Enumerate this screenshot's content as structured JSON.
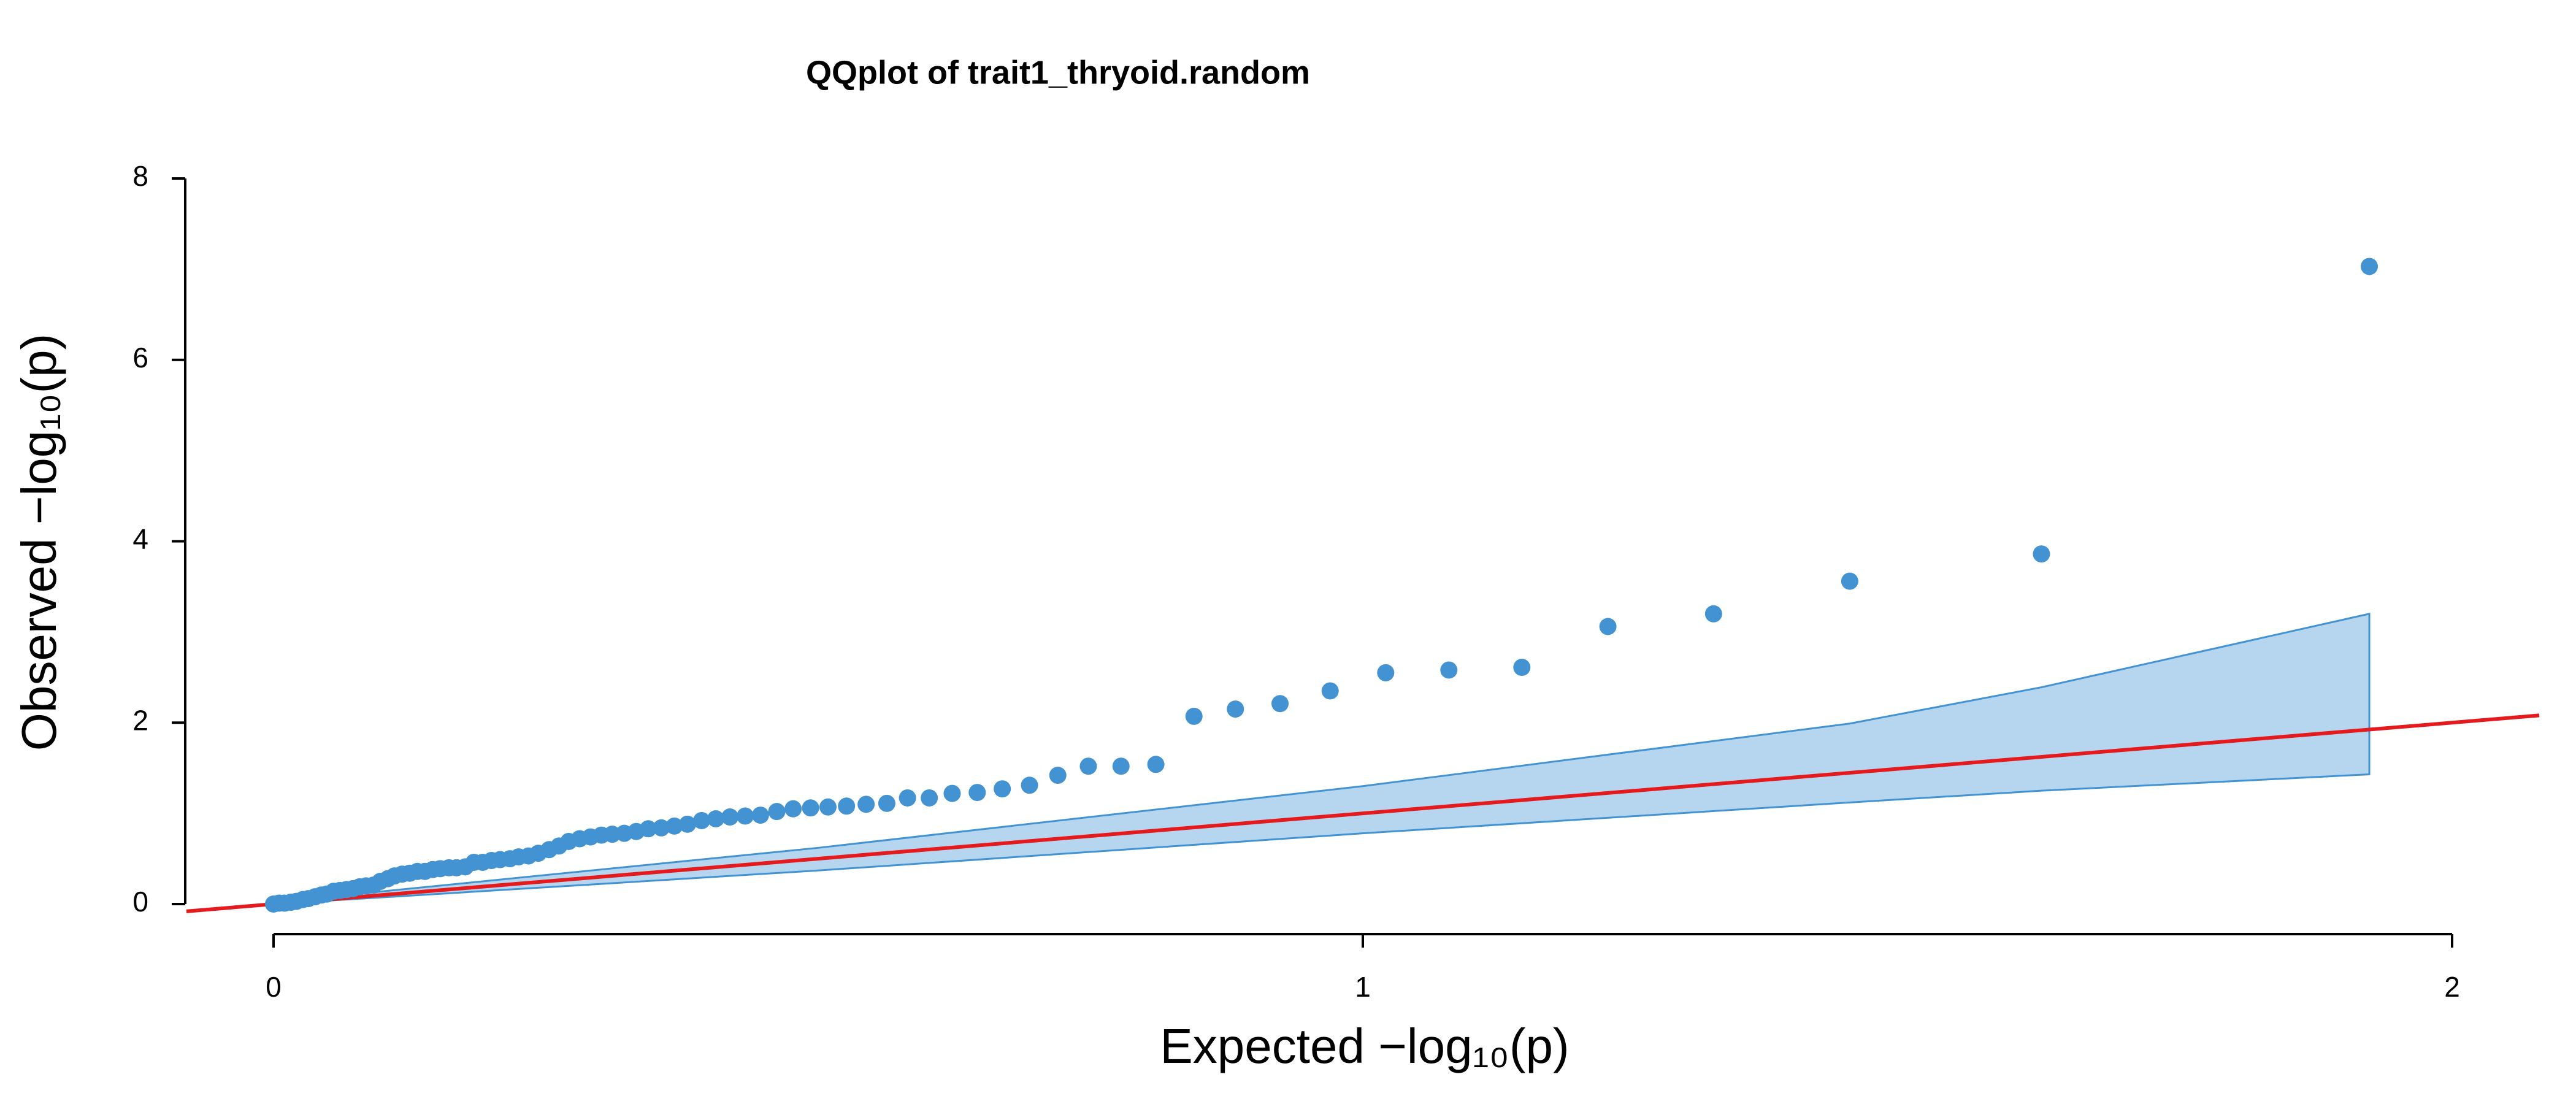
{
  "chart_data": {
    "type": "qq",
    "title": "QQplot of trait1_thryoid.random",
    "x_label": "Expected −log₁₀(p)",
    "y_label": "Observed −log₁₀(p)",
    "xlim": [
      0,
      2
    ],
    "ylim": [
      0,
      8
    ],
    "xticks": [
      0,
      1,
      2
    ],
    "yticks": [
      0,
      2,
      4,
      6,
      8
    ],
    "point_color": "#4393d3",
    "band_color": "#b6d6f0",
    "band_edge": "#4393d3",
    "reference_line": {
      "slope": 1,
      "intercept": 0,
      "color": "#e41a1c"
    },
    "x": [
      1.924,
      1.623,
      1.447,
      1.322,
      1.225,
      1.146,
      1.079,
      1.021,
      0.97,
      0.924,
      0.883,
      0.845,
      0.81,
      0.778,
      0.748,
      0.72,
      0.694,
      0.669,
      0.646,
      0.623,
      0.602,
      0.582,
      0.563,
      0.544,
      0.526,
      0.509,
      0.493,
      0.477,
      0.462,
      0.447,
      0.433,
      0.419,
      0.406,
      0.393,
      0.38,
      0.368,
      0.356,
      0.344,
      0.333,
      0.322,
      0.311,
      0.301,
      0.291,
      0.281,
      0.271,
      0.262,
      0.253,
      0.243,
      0.234,
      0.225,
      0.217,
      0.208,
      0.2,
      0.192,
      0.184,
      0.176,
      0.168,
      0.161,
      0.153,
      0.146,
      0.139,
      0.132,
      0.125,
      0.118,
      0.111,
      0.105,
      0.098,
      0.092,
      0.085,
      0.079,
      0.073,
      0.067,
      0.061,
      0.055,
      0.049,
      0.044,
      0.038,
      0.032,
      0.027,
      0.021,
      0.016,
      0.01,
      0.005,
      0.0
    ],
    "values": [
      7.03,
      3.86,
      3.56,
      3.2,
      3.06,
      2.61,
      2.58,
      2.55,
      2.35,
      2.21,
      2.15,
      2.07,
      1.54,
      1.52,
      1.52,
      1.42,
      1.31,
      1.27,
      1.23,
      1.22,
      1.17,
      1.17,
      1.11,
      1.1,
      1.08,
      1.07,
      1.06,
      1.05,
      1.02,
      0.98,
      0.97,
      0.96,
      0.94,
      0.92,
      0.88,
      0.86,
      0.84,
      0.83,
      0.8,
      0.78,
      0.77,
      0.76,
      0.74,
      0.72,
      0.69,
      0.64,
      0.6,
      0.56,
      0.53,
      0.52,
      0.5,
      0.49,
      0.48,
      0.46,
      0.46,
      0.41,
      0.4,
      0.4,
      0.39,
      0.38,
      0.36,
      0.36,
      0.34,
      0.33,
      0.31,
      0.28,
      0.25,
      0.21,
      0.2,
      0.19,
      0.17,
      0.16,
      0.15,
      0.14,
      0.11,
      0.1,
      0.08,
      0.06,
      0.05,
      0.03,
      0.02,
      0.01,
      0.01,
      0.0
    ],
    "band": {
      "x": [
        0,
        0.5,
        1.0,
        1.447,
        1.623,
        1.924
      ],
      "upper": [
        0.02,
        0.62,
        1.3,
        1.99,
        2.39,
        3.2
      ],
      "lower": [
        0,
        0.37,
        0.78,
        1.12,
        1.25,
        1.43
      ]
    }
  }
}
